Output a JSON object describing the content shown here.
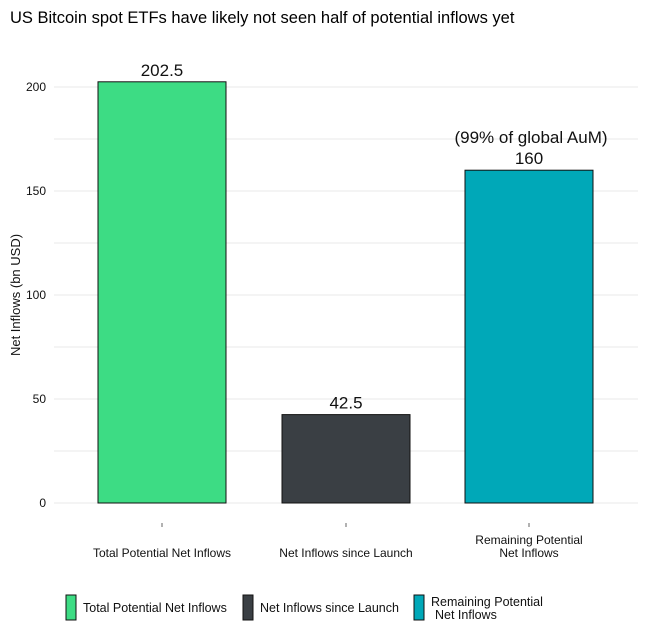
{
  "chart_data": {
    "type": "bar",
    "title": "US Bitcoin spot ETFs have likely not seen half of potential inflows yet",
    "xlabel": "",
    "ylabel": "Net Inflows (bn USD)",
    "ylim": [
      0,
      215
    ],
    "yticks": [
      0,
      50,
      100,
      150,
      200
    ],
    "grid": true,
    "categories": [
      [
        "Total Potential Net Inflows"
      ],
      [
        "Net Inflows since Launch"
      ],
      [
        "Remaining Potential",
        "Net Inflows"
      ]
    ],
    "values": [
      202.5,
      42.5,
      160
    ],
    "value_labels": [
      "202.5",
      "42.5",
      "160"
    ],
    "colors": [
      "#3ddc84",
      "#3a3f44",
      "#00a8b8"
    ],
    "annotations": [
      {
        "category_index": 2,
        "text": "(99% of global AuM)"
      }
    ],
    "legend": {
      "position": "bottom",
      "entries": [
        {
          "lines": [
            "Total Potential Net Inflows"
          ],
          "color": "#3ddc84"
        },
        {
          "lines": [
            "Net Inflows since Launch"
          ],
          "color": "#3a3f44"
        },
        {
          "lines": [
            "Remaining Potential",
            "Net Inflows"
          ],
          "color": "#00a8b8"
        }
      ]
    }
  }
}
